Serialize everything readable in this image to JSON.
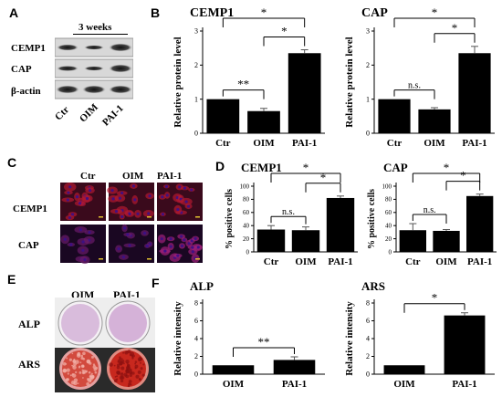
{
  "panels": {
    "A": {
      "letter": "A",
      "timepoint": "3 weeks",
      "rows": [
        "CEMP1",
        "CAP",
        "β-actin"
      ],
      "cols": [
        "Ctr",
        "OIM",
        "PAI-1"
      ]
    },
    "B": {
      "letter": "B"
    },
    "C": {
      "letter": "C",
      "cols": [
        "Ctr",
        "OIM",
        "PAI-1"
      ],
      "rows": [
        "CEMP1",
        "CAP"
      ]
    },
    "D": {
      "letter": "D"
    },
    "E": {
      "letter": "E",
      "cols": [
        "OIM",
        "PAI-1"
      ],
      "rows": [
        "ALP",
        "ARS"
      ]
    },
    "F": {
      "letter": "F"
    }
  },
  "colors": {
    "bar": "#000000",
    "axis": "#000000",
    "merge_red": "#b01830",
    "merge_blue": "#3a0f8a",
    "alp_plate": "#d7b9dc",
    "ars_plate": "#c8281e"
  },
  "chart_data": [
    {
      "id": "B-cemp1",
      "type": "bar",
      "title": "CEMP1",
      "ylabel": "Relative protein level",
      "categories": [
        "Ctr",
        "OIM",
        "PAI-1"
      ],
      "values": [
        1.0,
        0.65,
        2.35
      ],
      "errors": [
        0,
        0.08,
        0.1
      ],
      "ylim": [
        0,
        3
      ],
      "yticks": [
        "0",
        "1",
        "2",
        "3"
      ],
      "sig": [
        {
          "from": 0,
          "to": 1,
          "label": "**",
          "level": 0
        },
        {
          "from": 1,
          "to": 2,
          "label": "*",
          "level": 1
        },
        {
          "from": 0,
          "to": 2,
          "label": "*",
          "level": 2
        }
      ]
    },
    {
      "id": "B-cap",
      "type": "bar",
      "title": "CAP",
      "ylabel": "Relative protein level",
      "categories": [
        "Ctr",
        "OIM",
        "PAI-1"
      ],
      "values": [
        1.0,
        0.7,
        2.35
      ],
      "errors": [
        0,
        0.05,
        0.2
      ],
      "ylim": [
        0,
        3
      ],
      "yticks": [
        "0",
        "1",
        "2",
        "3"
      ],
      "sig": [
        {
          "from": 0,
          "to": 1,
          "label": "n.s.",
          "level": 0
        },
        {
          "from": 1,
          "to": 2,
          "label": "*",
          "level": 1
        },
        {
          "from": 0,
          "to": 2,
          "label": "*",
          "level": 2
        }
      ]
    },
    {
      "id": "D-cemp1",
      "type": "bar",
      "title": "CEMP1",
      "ylabel": "% positive cells",
      "categories": [
        "Ctr",
        "OIM",
        "PAI-1"
      ],
      "values": [
        34,
        33,
        82
      ],
      "errors": [
        6,
        5,
        3
      ],
      "ylim": [
        0,
        100
      ],
      "yticks": [
        "0",
        "20",
        "40",
        "60",
        "80",
        "100"
      ],
      "sig": [
        {
          "from": 0,
          "to": 1,
          "label": "n.s.",
          "level": 0
        },
        {
          "from": 1,
          "to": 2,
          "label": "*",
          "level": 1
        },
        {
          "from": 0,
          "to": 2,
          "label": "*",
          "level": 2
        }
      ]
    },
    {
      "id": "D-cap",
      "type": "bar",
      "title": "CAP",
      "ylabel": "% positive cells",
      "categories": [
        "Ctr",
        "OIM",
        "PAI-1"
      ],
      "values": [
        33,
        32,
        85
      ],
      "errors": [
        10,
        2,
        3
      ],
      "ylim": [
        0,
        100
      ],
      "yticks": [
        "0",
        "20",
        "40",
        "60",
        "80",
        "100"
      ],
      "sig": [
        {
          "from": 0,
          "to": 1,
          "label": "n.s.",
          "level": 0
        },
        {
          "from": 1,
          "to": 2,
          "label": "*",
          "level": 1
        },
        {
          "from": 0,
          "to": 2,
          "label": "*",
          "level": 2
        }
      ]
    },
    {
      "id": "F-alp",
      "type": "bar",
      "title": "ALP",
      "ylabel": "Relative intensity",
      "categories": [
        "OIM",
        "PAI-1"
      ],
      "values": [
        1.0,
        1.6
      ],
      "errors": [
        0,
        0.35
      ],
      "ylim": [
        0,
        8
      ],
      "yticks": [
        "0",
        "2",
        "4",
        "6",
        "8"
      ],
      "sig": [
        {
          "from": 0,
          "to": 1,
          "label": "**",
          "level": 0
        }
      ]
    },
    {
      "id": "F-ars",
      "type": "bar",
      "title": "ARS",
      "ylabel": "Relative intensity",
      "categories": [
        "OIM",
        "PAI-1"
      ],
      "values": [
        1.0,
        6.6
      ],
      "errors": [
        0,
        0.3
      ],
      "ylim": [
        0,
        8
      ],
      "yticks": [
        "0",
        "2",
        "4",
        "6",
        "8"
      ],
      "sig": [
        {
          "from": 0,
          "to": 1,
          "label": "*",
          "level": 0
        }
      ]
    }
  ]
}
